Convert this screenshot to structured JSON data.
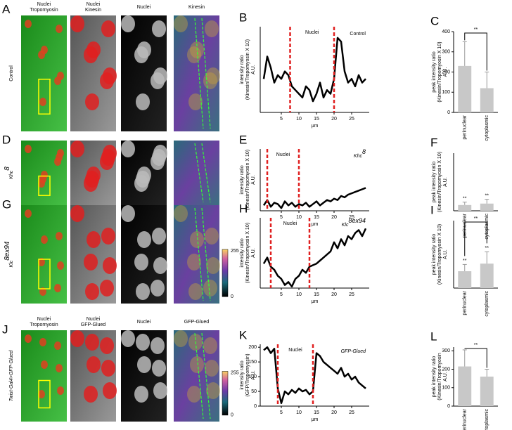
{
  "figure": {
    "rows": [
      {
        "panel": "A",
        "row_label": "Control",
        "columns": [
          [
            "Nuclei",
            "Tropomyosin"
          ],
          [
            "Nuclei",
            "Kinesin"
          ],
          [
            "Nuclei"
          ],
          [
            "Kinesin"
          ]
        ]
      },
      {
        "panel": "D",
        "row_label": "Khc",
        "row_label_sup": "8"
      },
      {
        "panel": "G",
        "row_label": "Klc",
        "row_label_sup": "8ex94",
        "colorbar": [
          255,
          0
        ]
      },
      {
        "panel": "J",
        "row_label": "Twist-Gal4>GFP-Glued",
        "columns": [
          [
            "Nuclei",
            "Tropomyosin"
          ],
          [
            "Nuclei",
            "GFP-Glued"
          ],
          [
            "Nuclei"
          ],
          [
            "GFP-Glued"
          ]
        ],
        "colorbar": [
          255,
          0
        ]
      }
    ]
  },
  "chart_data": [
    {
      "type": "line",
      "panel": "B",
      "ylabel": [
        "intensity ratio",
        "(Kinesin/Tropomyosin X 10)",
        "A.U."
      ],
      "xlabel": "μm",
      "annotation": "Nuclei",
      "label": "Control",
      "label_style": "normal",
      "x": [
        0,
        1,
        2,
        3,
        4,
        5,
        6,
        7,
        8,
        9,
        10,
        11,
        12,
        13,
        14,
        15,
        16,
        17,
        18,
        19,
        20,
        21,
        22,
        23,
        24,
        25,
        26,
        27,
        28,
        29
      ],
      "values": [
        90,
        150,
        120,
        80,
        100,
        90,
        110,
        100,
        70,
        60,
        50,
        40,
        70,
        60,
        30,
        50,
        80,
        40,
        60,
        50,
        90,
        200,
        190,
        110,
        80,
        90,
        70,
        100,
        80,
        90
      ],
      "vlines": [
        7.5,
        20
      ],
      "xlim": [
        -1,
        30
      ],
      "ylim": [
        0,
        230
      ],
      "xticks": [
        5,
        10,
        15,
        20,
        25
      ]
    },
    {
      "type": "bar",
      "panel": "C",
      "ylabel": [
        "peak intensity ratio",
        "(Kinesin/Tropomyosin X 10)",
        "A.U."
      ],
      "categories": [
        "perinuclear",
        "cytoplasmic"
      ],
      "values": [
        230,
        120
      ],
      "errors": [
        120,
        80
      ],
      "ylim": [
        0,
        400
      ],
      "yticks": [
        0,
        100,
        200,
        300,
        400
      ],
      "bracket_label": "**",
      "color": "#c8c8c8"
    },
    {
      "type": "line",
      "panel": "E",
      "ylabel": [
        "intensity ratio",
        "(Kinesin/Tropomyosin X 10)",
        "A.U."
      ],
      "xlabel": "μm",
      "annotation": "Nuclei",
      "label": "Khc",
      "label_sup": "8",
      "label_style": "italic",
      "x": [
        0,
        1,
        2,
        3,
        4,
        5,
        6,
        7,
        8,
        9,
        10,
        11,
        12,
        13,
        14,
        15,
        16,
        17,
        18,
        19,
        20,
        21,
        22,
        23,
        24,
        25,
        26,
        27,
        28,
        29
      ],
      "values": [
        20,
        40,
        15,
        30,
        25,
        10,
        35,
        20,
        30,
        15,
        25,
        20,
        30,
        15,
        25,
        35,
        20,
        30,
        40,
        35,
        45,
        40,
        55,
        50,
        60,
        65,
        70,
        75,
        80,
        85
      ],
      "vlines": [
        1,
        10
      ],
      "xlim": [
        -1,
        30
      ],
      "ylim": [
        0,
        230
      ],
      "xticks": [
        5,
        10,
        15,
        20,
        25
      ]
    },
    {
      "type": "bar",
      "panel": "F",
      "ylabel": [
        "peak intensity ratio",
        "(Kinesin/Tropomyosin X 10)",
        "A.U."
      ],
      "categories": [
        "perinuclear",
        "cytoplasmic"
      ],
      "values": [
        40,
        50
      ],
      "errors": [
        20,
        30
      ],
      "ylim": [
        0,
        400
      ],
      "bar_labels": [
        "**",
        "**"
      ],
      "color": "#c8c8c8"
    },
    {
      "type": "line",
      "panel": "H",
      "ylabel": [
        "intensity ratio",
        "(Kinesin/Tropomyosin X 10)",
        "A.U."
      ],
      "xlabel": "μm",
      "annotation": "Nuclei",
      "label": "Klc",
      "label_sup": "8ex94",
      "label_style": "italic",
      "x": [
        0,
        1,
        2,
        3,
        4,
        5,
        6,
        7,
        8,
        9,
        10,
        11,
        12,
        13,
        14,
        15,
        16,
        17,
        18,
        19,
        20,
        21,
        22,
        23,
        24,
        25,
        26,
        27,
        28,
        29
      ],
      "values": [
        80,
        100,
        70,
        60,
        40,
        30,
        10,
        20,
        5,
        30,
        40,
        60,
        50,
        70,
        75,
        80,
        90,
        100,
        110,
        120,
        150,
        130,
        160,
        140,
        170,
        160,
        180,
        190,
        170,
        195
      ],
      "vlines": [
        2,
        13
      ],
      "xlim": [
        -1,
        30
      ],
      "ylim": [
        0,
        230
      ],
      "xticks": [
        5,
        10,
        15,
        20,
        25
      ]
    },
    {
      "type": "bar",
      "panel": "I",
      "ylabel": [
        "peak intensity ratio",
        "(Kinesin/Tropomyosin X 10)",
        "A.U."
      ],
      "categories": [
        "perinuclear",
        "cytoplasmic"
      ],
      "values": [
        100,
        145
      ],
      "errors": [
        40,
        70
      ],
      "ylim": [
        0,
        400
      ],
      "bracket_label": "**",
      "bar_labels": [
        "**",
        "**"
      ],
      "color": "#c8c8c8"
    },
    {
      "type": "line",
      "panel": "K",
      "ylabel": [
        "intensity ratio",
        "(GFP/Tropomyosin)",
        "A.U."
      ],
      "xlabel": "μm",
      "annotation": "Nuclei",
      "label": "GFP-Glued",
      "label_style": "italic",
      "x": [
        0,
        1,
        2,
        3,
        4,
        5,
        6,
        7,
        8,
        9,
        10,
        11,
        12,
        13,
        14,
        15,
        16,
        17,
        18,
        19,
        20,
        21,
        22,
        23,
        24,
        25,
        26,
        27,
        28,
        29
      ],
      "values": [
        190,
        200,
        180,
        195,
        60,
        10,
        50,
        40,
        55,
        45,
        60,
        50,
        55,
        40,
        50,
        180,
        170,
        150,
        140,
        130,
        120,
        110,
        130,
        100,
        110,
        90,
        100,
        80,
        70,
        60
      ],
      "vlines": [
        4,
        14
      ],
      "xlim": [
        -1,
        30
      ],
      "ylim": [
        0,
        210
      ],
      "yticks": [
        0,
        50,
        100,
        150,
        200
      ],
      "xticks": [
        5,
        10,
        15,
        20,
        25
      ]
    },
    {
      "type": "bar",
      "panel": "L",
      "ylabel": [
        "peak intensity ratio",
        "(Kinesin/Tropomyosin",
        "A.U."
      ],
      "categories": [
        "perinuclear",
        "cytoplasmic"
      ],
      "values": [
        215,
        160
      ],
      "errors": [
        90,
        40
      ],
      "ylim": [
        0,
        320
      ],
      "yticks": [
        0,
        100,
        200,
        300
      ],
      "bracket_label": "**",
      "color": "#c8c8c8"
    }
  ]
}
